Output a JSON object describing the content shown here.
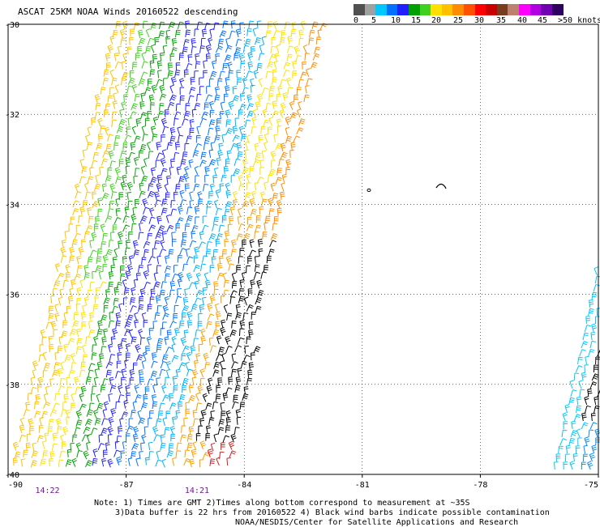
{
  "title": "ASCAT 25KM NOAA Winds 20160522 descending",
  "legend": {
    "colors": [
      "#505050",
      "#a0a0a0",
      "#00c8ff",
      "#0070ff",
      "#2020ff",
      "#00a000",
      "#40d020",
      "#ffe000",
      "#ffc000",
      "#ff8c00",
      "#ff5000",
      "#ff0000",
      "#c80000",
      "#783c1e",
      "#c08070",
      "#ff00ff",
      "#b000e0",
      "#7000b0",
      "#300060"
    ],
    "labels": [
      "0",
      "5",
      "10",
      "15",
      "20",
      "25",
      "30",
      "35",
      "40",
      "45",
      ">50 knots"
    ]
  },
  "map": {
    "lon_labels": [
      "-90",
      "-87",
      "-84",
      "-81",
      "-78",
      "-75"
    ],
    "lat_labels": [
      "-30",
      "-32",
      "-34",
      "-36",
      "-38",
      "-40"
    ],
    "times": [
      "14:22",
      "14:21"
    ]
  },
  "notes": {
    "line1": "Note: 1) Times are GMT 2)Times along bottom correspond to measurement at ~35S",
    "line2": "3)Data buffer is 22 hrs from 20160522 4) Black wind barbs indicate possible contamination",
    "line3": "NOAA/NESDIS/Center for Satellite Applications and Research"
  }
}
